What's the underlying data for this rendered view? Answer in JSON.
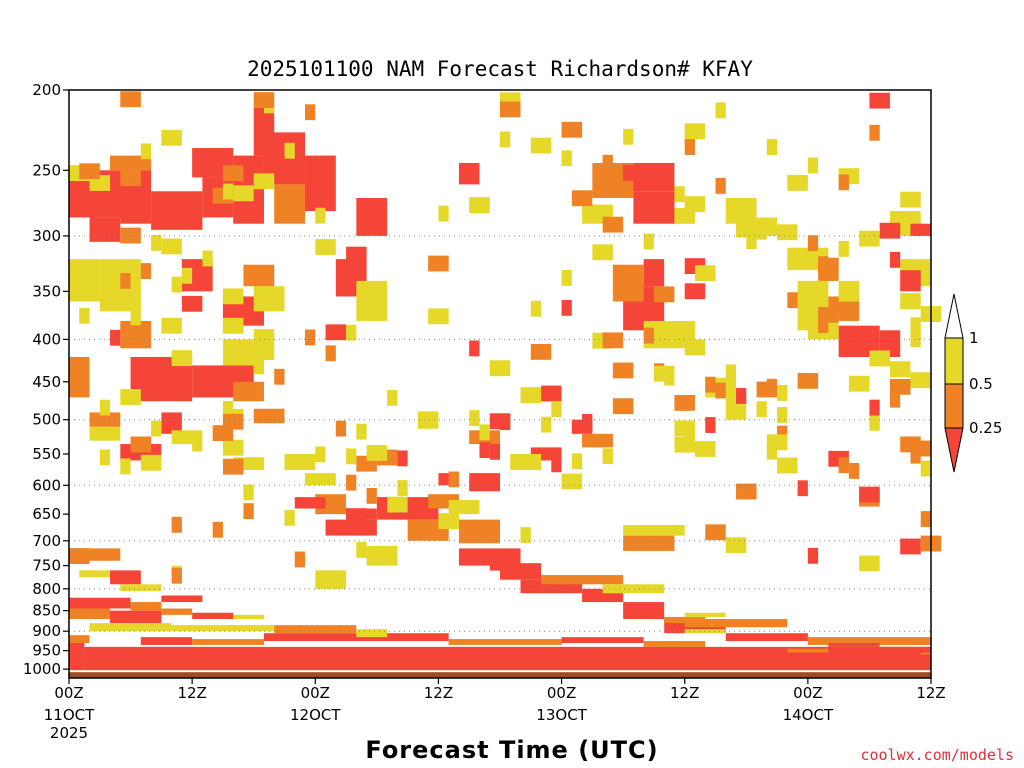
{
  "chart_data": {
    "type": "heatmap",
    "title": "2025101100 NAM Forecast Richardson# KFAY",
    "xlabel": "Forecast Time (UTC)",
    "ylabel": "",
    "y_scale": "log",
    "y_reversed": true,
    "ylim": [
      1025,
      200
    ],
    "xlim": [
      0,
      84
    ],
    "y_ticks": [
      200,
      250,
      300,
      350,
      400,
      450,
      500,
      550,
      600,
      650,
      700,
      750,
      800,
      850,
      900,
      950,
      1000
    ],
    "y_gridlines": [
      300,
      400,
      500,
      600,
      700,
      800,
      900
    ],
    "x_ticks": [
      {
        "hour": 0,
        "label": "00Z",
        "date": "11OCT",
        "year": "2025"
      },
      {
        "hour": 12,
        "label": "12Z",
        "date": "",
        "year": ""
      },
      {
        "hour": 24,
        "label": "00Z",
        "date": "12OCT",
        "year": ""
      },
      {
        "hour": 36,
        "label": "12Z",
        "date": "",
        "year": ""
      },
      {
        "hour": 48,
        "label": "00Z",
        "date": "13OCT",
        "year": ""
      },
      {
        "hour": 60,
        "label": "12Z",
        "date": "",
        "year": ""
      },
      {
        "hour": 72,
        "label": "00Z",
        "date": "14OCT",
        "year": ""
      },
      {
        "hour": 84,
        "label": "12Z",
        "date": "",
        "year": ""
      }
    ],
    "legend": {
      "placement": "right",
      "levels": [
        {
          "label": "1",
          "color": "#ffffff"
        },
        {
          "label": "0.5",
          "color": "#e5d829"
        },
        {
          "label": "0.25",
          "color": "#ee8224"
        },
        {
          "label": "",
          "color": "#f44538"
        }
      ]
    },
    "colors": {
      "red": "#f44538",
      "orange": "#ee8224",
      "yellow": "#e5d829",
      "ground": "#a04a22"
    },
    "cells": [
      {
        "x0": 0,
        "x1": 5,
        "p0": 740,
        "p1": 715,
        "c": "orange"
      },
      {
        "x0": 0,
        "x1": 1.5,
        "p0": 1025,
        "p1": 930,
        "c": "red"
      },
      {
        "x0": 1.5,
        "x1": 84,
        "p0": 1025,
        "p1": 940,
        "c": "red"
      },
      {
        "x0": 0,
        "x1": 84,
        "p0": 975,
        "p1": 960,
        "c": "red"
      },
      {
        "x0": 0,
        "x1": 4,
        "p0": 870,
        "p1": 830,
        "c": "orange"
      },
      {
        "x0": 0,
        "x1": 6,
        "p0": 845,
        "p1": 820,
        "c": "red"
      },
      {
        "x0": 4,
        "x1": 9,
        "p0": 880,
        "p1": 850,
        "c": "red"
      },
      {
        "x0": 6,
        "x1": 9,
        "p0": 850,
        "p1": 830,
        "c": "orange"
      },
      {
        "x0": 2,
        "x1": 10,
        "p0": 900,
        "p1": 880,
        "c": "yellow"
      },
      {
        "x0": 10,
        "x1": 20,
        "p0": 900,
        "p1": 885,
        "c": "yellow"
      },
      {
        "x0": 7,
        "x1": 12,
        "p0": 935,
        "p1": 915,
        "c": "red"
      },
      {
        "x0": 12,
        "x1": 19,
        "p0": 935,
        "p1": 920,
        "c": "orange"
      },
      {
        "x0": 19,
        "x1": 37,
        "p0": 925,
        "p1": 905,
        "c": "red"
      },
      {
        "x0": 20,
        "x1": 28,
        "p0": 905,
        "p1": 885,
        "c": "orange"
      },
      {
        "x0": 28,
        "x1": 31,
        "p0": 915,
        "p1": 895,
        "c": "yellow"
      },
      {
        "x0": 1,
        "x1": 4,
        "p0": 775,
        "p1": 760,
        "c": "yellow"
      },
      {
        "x0": 4,
        "x1": 7,
        "p0": 790,
        "p1": 760,
        "c": "red"
      },
      {
        "x0": 5,
        "x1": 9,
        "p0": 805,
        "p1": 790,
        "c": "yellow"
      },
      {
        "x0": 9,
        "x1": 13,
        "p0": 830,
        "p1": 815,
        "c": "red"
      },
      {
        "x0": 38,
        "x1": 44,
        "p0": 750,
        "p1": 715,
        "c": "red"
      },
      {
        "x0": 38,
        "x1": 42,
        "p0": 705,
        "p1": 660,
        "c": "orange"
      },
      {
        "x0": 42,
        "x1": 46,
        "p0": 780,
        "p1": 745,
        "c": "red"
      },
      {
        "x0": 44,
        "x1": 50,
        "p0": 810,
        "p1": 780,
        "c": "red"
      },
      {
        "x0": 50,
        "x1": 54,
        "p0": 830,
        "p1": 800,
        "c": "red"
      },
      {
        "x0": 54,
        "x1": 58,
        "p0": 870,
        "p1": 830,
        "c": "red"
      },
      {
        "x0": 58,
        "x1": 64,
        "p0": 905,
        "p1": 870,
        "c": "red"
      },
      {
        "x0": 64,
        "x1": 72,
        "p0": 925,
        "p1": 905,
        "c": "red"
      },
      {
        "x0": 72,
        "x1": 84,
        "p0": 935,
        "p1": 915,
        "c": "orange"
      },
      {
        "x0": 46,
        "x1": 54,
        "p0": 790,
        "p1": 770,
        "c": "orange"
      },
      {
        "x0": 52,
        "x1": 58,
        "p0": 810,
        "p1": 790,
        "c": "yellow"
      },
      {
        "x0": 60,
        "x1": 70,
        "p0": 890,
        "p1": 870,
        "c": "orange"
      },
      {
        "x0": 30,
        "x1": 36,
        "p0": 660,
        "p1": 620,
        "c": "red"
      },
      {
        "x0": 25,
        "x1": 30,
        "p0": 690,
        "p1": 660,
        "c": "red"
      },
      {
        "x0": 33,
        "x1": 37,
        "p0": 700,
        "p1": 660,
        "c": "orange"
      },
      {
        "x0": 29,
        "x1": 32,
        "p0": 750,
        "p1": 710,
        "c": "yellow"
      },
      {
        "x0": 24,
        "x1": 27,
        "p0": 800,
        "p1": 760,
        "c": "yellow"
      },
      {
        "x0": 54,
        "x1": 59,
        "p0": 720,
        "p1": 690,
        "c": "orange"
      },
      {
        "x0": 0,
        "x1": 6,
        "p0": 285,
        "p1": 250,
        "c": "red"
      },
      {
        "x0": 2,
        "x1": 5,
        "p0": 305,
        "p1": 285,
        "c": "red"
      },
      {
        "x0": 4,
        "x1": 8,
        "p0": 250,
        "p1": 240,
        "c": "orange"
      },
      {
        "x0": 5,
        "x1": 8,
        "p0": 290,
        "p1": 250,
        "c": "red"
      },
      {
        "x0": 8,
        "x1": 13,
        "p0": 295,
        "p1": 265,
        "c": "red"
      },
      {
        "x0": 12,
        "x1": 16,
        "p0": 255,
        "p1": 235,
        "c": "red"
      },
      {
        "x0": 13,
        "x1": 16,
        "p0": 285,
        "p1": 255,
        "c": "red"
      },
      {
        "x0": 16,
        "x1": 19,
        "p0": 290,
        "p1": 240,
        "c": "red"
      },
      {
        "x0": 18,
        "x1": 20,
        "p0": 240,
        "p1": 210,
        "c": "red"
      },
      {
        "x0": 19,
        "x1": 23,
        "p0": 260,
        "p1": 225,
        "c": "red"
      },
      {
        "x0": 20,
        "x1": 23,
        "p0": 290,
        "p1": 260,
        "c": "orange"
      },
      {
        "x0": 23,
        "x1": 26,
        "p0": 280,
        "p1": 240,
        "c": "red"
      },
      {
        "x0": 28,
        "x1": 31,
        "p0": 300,
        "p1": 270,
        "c": "red"
      },
      {
        "x0": 38,
        "x1": 40,
        "p0": 260,
        "p1": 245,
        "c": "red"
      },
      {
        "x0": 53,
        "x1": 59,
        "p0": 265,
        "p1": 245,
        "c": "red"
      },
      {
        "x0": 55,
        "x1": 59,
        "p0": 290,
        "p1": 265,
        "c": "red"
      },
      {
        "x0": 51,
        "x1": 55,
        "p0": 270,
        "p1": 245,
        "c": "orange"
      },
      {
        "x0": 50,
        "x1": 53,
        "p0": 290,
        "p1": 275,
        "c": "yellow"
      },
      {
        "x0": 54,
        "x1": 58,
        "p0": 390,
        "p1": 345,
        "c": "red"
      },
      {
        "x0": 56,
        "x1": 58,
        "p0": 345,
        "p1": 320,
        "c": "red"
      },
      {
        "x0": 53,
        "x1": 56,
        "p0": 360,
        "p1": 325,
        "c": "orange"
      },
      {
        "x0": 56,
        "x1": 61,
        "p0": 410,
        "p1": 380,
        "c": "yellow"
      },
      {
        "x0": 6,
        "x1": 12,
        "p0": 475,
        "p1": 420,
        "c": "red"
      },
      {
        "x0": 12,
        "x1": 18,
        "p0": 470,
        "p1": 430,
        "c": "red"
      },
      {
        "x0": 15,
        "x1": 19,
        "p0": 430,
        "p1": 400,
        "c": "yellow"
      },
      {
        "x0": 5,
        "x1": 8,
        "p0": 410,
        "p1": 380,
        "c": "orange"
      },
      {
        "x0": 0,
        "x1": 3,
        "p0": 360,
        "p1": 320,
        "c": "yellow"
      },
      {
        "x0": 3,
        "x1": 7,
        "p0": 370,
        "p1": 320,
        "c": "yellow"
      },
      {
        "x0": 0,
        "x1": 2,
        "p0": 470,
        "p1": 420,
        "c": "orange"
      },
      {
        "x0": 15,
        "x1": 19,
        "p0": 385,
        "p1": 355,
        "c": "red"
      },
      {
        "x0": 18,
        "x1": 21,
        "p0": 370,
        "p1": 345,
        "c": "yellow"
      },
      {
        "x0": 17,
        "x1": 20,
        "p0": 345,
        "p1": 325,
        "c": "orange"
      },
      {
        "x0": 11,
        "x1": 14,
        "p0": 350,
        "p1": 320,
        "c": "red"
      },
      {
        "x0": 26,
        "x1": 29,
        "p0": 355,
        "p1": 320,
        "c": "red"
      },
      {
        "x0": 28,
        "x1": 31,
        "p0": 380,
        "p1": 340,
        "c": "yellow"
      },
      {
        "x0": 71,
        "x1": 74,
        "p0": 390,
        "p1": 340,
        "c": "yellow"
      },
      {
        "x0": 74,
        "x1": 77,
        "p0": 380,
        "p1": 355,
        "c": "orange"
      },
      {
        "x0": 75,
        "x1": 79,
        "p0": 420,
        "p1": 385,
        "c": "red"
      },
      {
        "x0": 79,
        "x1": 81,
        "p0": 420,
        "p1": 390,
        "c": "red"
      },
      {
        "x0": 72,
        "x1": 75,
        "p0": 400,
        "p1": 370,
        "c": "yellow"
      },
      {
        "x0": 80,
        "x1": 83,
        "p0": 300,
        "p1": 280,
        "c": "yellow"
      },
      {
        "x0": 82,
        "x1": 84,
        "p0": 300,
        "p1": 290,
        "c": "red"
      },
      {
        "x0": 81,
        "x1": 84,
        "p0": 345,
        "p1": 320,
        "c": "yellow"
      },
      {
        "x0": 81,
        "x1": 83,
        "p0": 350,
        "p1": 330,
        "c": "red"
      },
      {
        "x0": 70,
        "x1": 74,
        "p0": 330,
        "p1": 310,
        "c": "yellow"
      },
      {
        "x0": 73,
        "x1": 75,
        "p0": 340,
        "p1": 320,
        "c": "orange"
      },
      {
        "x0": 75,
        "x1": 77,
        "p0": 360,
        "p1": 340,
        "c": "yellow"
      },
      {
        "x0": 64,
        "x1": 67,
        "p0": 290,
        "p1": 270,
        "c": "yellow"
      },
      {
        "x0": 67,
        "x1": 69,
        "p0": 300,
        "p1": 285,
        "c": "yellow"
      },
      {
        "x0": 21,
        "x1": 24,
        "p0": 575,
        "p1": 550,
        "c": "yellow"
      },
      {
        "x0": 16,
        "x1": 19,
        "p0": 575,
        "p1": 555,
        "c": "yellow"
      },
      {
        "x0": 23,
        "x1": 26,
        "p0": 600,
        "p1": 580,
        "c": "yellow"
      },
      {
        "x0": 24,
        "x1": 27,
        "p0": 650,
        "p1": 615,
        "c": "orange"
      },
      {
        "x0": 35,
        "x1": 38,
        "p0": 640,
        "p1": 615,
        "c": "orange"
      },
      {
        "x0": 37,
        "x1": 40,
        "p0": 650,
        "p1": 625,
        "c": "yellow"
      },
      {
        "x0": 36,
        "x1": 38,
        "p0": 600,
        "p1": 580,
        "c": "red"
      },
      {
        "x0": 39,
        "x1": 42,
        "p0": 610,
        "p1": 580,
        "c": "red"
      },
      {
        "x0": 45,
        "x1": 48,
        "p0": 560,
        "p1": 540,
        "c": "red"
      },
      {
        "x0": 43,
        "x1": 46,
        "p0": 575,
        "p1": 550,
        "c": "yellow"
      },
      {
        "x0": 49,
        "x1": 51,
        "p0": 520,
        "p1": 500,
        "c": "red"
      },
      {
        "x0": 39,
        "x1": 42,
        "p0": 535,
        "p1": 515,
        "c": "orange"
      },
      {
        "x0": 50,
        "x1": 53,
        "p0": 540,
        "p1": 520,
        "c": "orange"
      },
      {
        "x0": 27,
        "x1": 30,
        "p0": 660,
        "p1": 640,
        "c": "red"
      },
      {
        "x0": 22,
        "x1": 25,
        "p0": 640,
        "p1": 620,
        "c": "red"
      },
      {
        "x0": 5,
        "x1": 9,
        "p0": 560,
        "p1": 535,
        "c": "red"
      },
      {
        "x0": 9,
        "x1": 11,
        "p0": 520,
        "p1": 490,
        "c": "red"
      },
      {
        "x0": 2,
        "x1": 5,
        "p0": 510,
        "p1": 490,
        "c": "orange"
      },
      {
        "x0": 18,
        "x1": 21,
        "p0": 505,
        "p1": 485,
        "c": "orange"
      },
      {
        "x0": 16,
        "x1": 19,
        "p0": 475,
        "p1": 450,
        "c": "orange"
      },
      {
        "x0": 2,
        "x1": 5,
        "p0": 530,
        "p1": 510,
        "c": "yellow"
      },
      {
        "x0": 10,
        "x1": 13,
        "p0": 535,
        "p1": 515,
        "c": "yellow"
      },
      {
        "x0": 54,
        "x1": 60,
        "p0": 690,
        "p1": 670,
        "c": "yellow"
      },
      {
        "x0": 62,
        "x1": 65,
        "p0": 470,
        "p1": 445,
        "c": "yellow"
      },
      {
        "x0": 64,
        "x1": 66,
        "p0": 500,
        "p1": 470,
        "c": "yellow"
      },
      {
        "x0": 83,
        "x1": 84,
        "p0": 960,
        "p1": 945,
        "c": "orange"
      },
      {
        "x0": 60,
        "x1": 64,
        "p0": 905,
        "p1": 895,
        "c": "yellow"
      },
      {
        "x0": 70,
        "x1": 74,
        "p0": 955,
        "p1": 945,
        "c": "orange"
      },
      {
        "x0": 74,
        "x1": 79,
        "p0": 940,
        "p1": 930,
        "c": "red"
      },
      {
        "x0": 79,
        "x1": 84,
        "p0": 955,
        "p1": 940,
        "c": "red"
      },
      {
        "x0": 58,
        "x1": 62,
        "p0": 880,
        "p1": 865,
        "c": "orange"
      },
      {
        "x0": 60,
        "x1": 64,
        "p0": 865,
        "p1": 855,
        "c": "yellow"
      },
      {
        "x0": 9,
        "x1": 12,
        "p0": 860,
        "p1": 845,
        "c": "orange"
      },
      {
        "x0": 12,
        "x1": 16,
        "p0": 870,
        "p1": 855,
        "c": "red"
      },
      {
        "x0": 16,
        "x1": 19,
        "p0": 870,
        "p1": 860,
        "c": "yellow"
      },
      {
        "x0": 0,
        "x1": 2,
        "p0": 930,
        "p1": 910,
        "c": "orange"
      },
      {
        "x0": 37,
        "x1": 48,
        "p0": 935,
        "p1": 920,
        "c": "orange"
      },
      {
        "x0": 48,
        "x1": 56,
        "p0": 930,
        "p1": 915,
        "c": "red"
      },
      {
        "x0": 56,
        "x1": 62,
        "p0": 940,
        "p1": 925,
        "c": "orange"
      }
    ],
    "sprinkle_seed": 42
  },
  "credit": "coolwx.com/models"
}
